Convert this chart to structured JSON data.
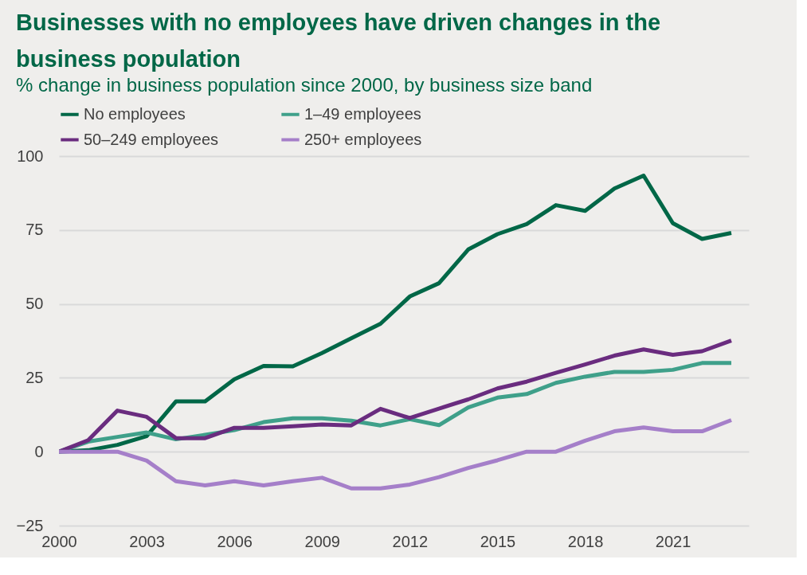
{
  "chart_data": {
    "type": "line",
    "title": "Businesses with no employees have driven changes in the business population",
    "subtitle": "% change in business population since 2000, by business size band",
    "x": [
      2000,
      2001,
      2002,
      2003,
      2004,
      2005,
      2006,
      2007,
      2008,
      2009,
      2010,
      2011,
      2012,
      2013,
      2014,
      2015,
      2016,
      2017,
      2018,
      2019,
      2020,
      2021,
      2022,
      2023
    ],
    "series": [
      {
        "name": "No employees",
        "color": "#006747",
        "values": [
          0,
          0.5,
          2.3,
          5.3,
          17,
          17,
          24.5,
          29,
          28.9,
          33.4,
          38.4,
          43.3,
          52.5,
          57,
          68.4,
          73.6,
          77,
          83.4,
          81.5,
          89,
          93.4,
          77.3,
          72,
          74
        ]
      },
      {
        "name": "1–49 employees",
        "color": "#3fa08a",
        "values": [
          0,
          3.4,
          5,
          6.5,
          4.2,
          5.7,
          7.3,
          10,
          11.3,
          11.3,
          10.5,
          8.9,
          11,
          9,
          15,
          18.3,
          19.5,
          23.3,
          25.4,
          27,
          27,
          27.7,
          30,
          30
        ]
      },
      {
        "name": "50–249 employees",
        "color": "#6a2c7f",
        "values": [
          0,
          3.9,
          13.9,
          11.8,
          4.6,
          4.6,
          8.1,
          8.1,
          8.6,
          9.2,
          8.9,
          14.5,
          11.4,
          14.6,
          17.7,
          21.4,
          23.7,
          26.7,
          29.5,
          32.5,
          34.6,
          32.8,
          34,
          37.6
        ]
      },
      {
        "name": "250+ employees",
        "color": "#a57fc9",
        "values": [
          0,
          0,
          0,
          -3,
          -10,
          -11.4,
          -10,
          -11.4,
          -10,
          -8.8,
          -12.4,
          -12.4,
          -11.1,
          -8.6,
          -5.5,
          -2.9,
          0,
          0,
          3.7,
          6.9,
          8.2,
          6.9,
          6.9,
          10.7
        ]
      }
    ],
    "xlim": [
      2000,
      2023.6
    ],
    "xticks": [
      2000,
      2003,
      2006,
      2009,
      2012,
      2015,
      2018,
      2021
    ],
    "ylim": [
      -25,
      100
    ],
    "yticks": [
      -25,
      0,
      25,
      50,
      75,
      100
    ],
    "grid": "y",
    "legend": "top",
    "line_style": "solid",
    "marker": "none"
  }
}
